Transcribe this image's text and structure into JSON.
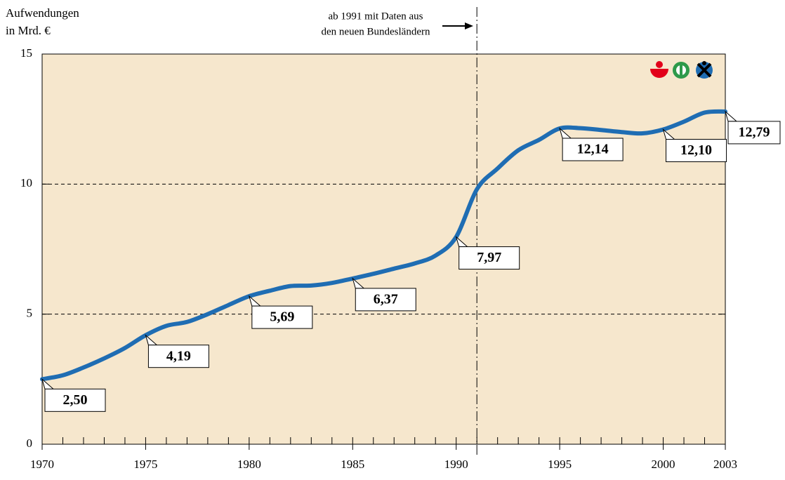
{
  "chart_data": {
    "type": "line",
    "y_label": [
      "Aufwendungen",
      "in Mrd. €"
    ],
    "annotation": [
      "ab 1991 mit Daten aus",
      "den neuen Bundesländern"
    ],
    "vline": 1991,
    "x": [
      1970,
      1971,
      1972,
      1973,
      1974,
      1975,
      1976,
      1977,
      1978,
      1979,
      1980,
      1981,
      1982,
      1983,
      1984,
      1985,
      1986,
      1987,
      1988,
      1989,
      1990,
      1991,
      1992,
      1993,
      1994,
      1995,
      1996,
      1997,
      1998,
      1999,
      2000,
      2001,
      2002,
      2003
    ],
    "series": [
      {
        "color": "#1f6db3",
        "values": [
          2.5,
          2.65,
          2.95,
          3.3,
          3.7,
          4.19,
          4.55,
          4.7,
          5.0,
          5.35,
          5.69,
          5.9,
          6.08,
          6.1,
          6.2,
          6.37,
          6.55,
          6.75,
          6.95,
          7.25,
          7.97,
          9.8,
          10.6,
          11.3,
          11.7,
          12.14,
          12.15,
          12.08,
          12.0,
          11.95,
          12.1,
          12.4,
          12.75,
          12.79
        ],
        "value_labels": [
          "2,50",
          null,
          null,
          null,
          null,
          "4,19",
          null,
          null,
          null,
          null,
          "5,69",
          null,
          null,
          null,
          null,
          "6,37",
          null,
          null,
          null,
          null,
          "7,97",
          null,
          null,
          null,
          null,
          "12,14",
          null,
          null,
          null,
          null,
          "12,10",
          null,
          null,
          "12,79"
        ]
      }
    ],
    "xlim": [
      1970,
      2003
    ],
    "xticks": [
      1970,
      1975,
      1980,
      1985,
      1990,
      1995,
      2000,
      2003
    ],
    "ylim": [
      0,
      15
    ],
    "yticks": [
      0,
      5,
      10,
      15
    ],
    "grid": true
  }
}
